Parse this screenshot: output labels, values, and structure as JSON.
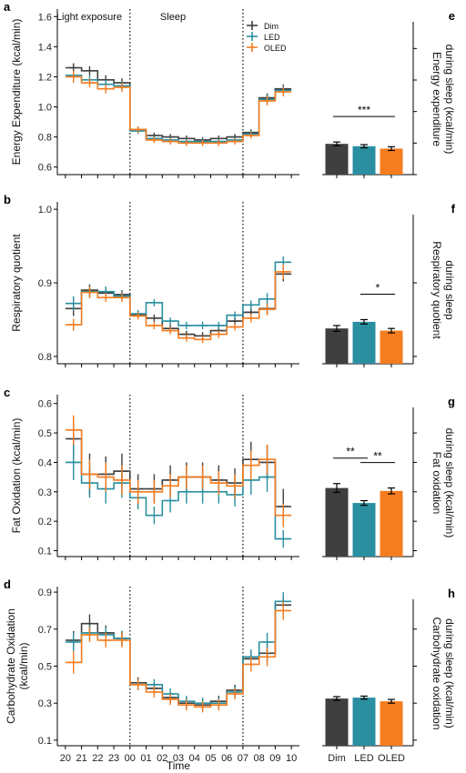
{
  "colors": {
    "Dim": "#3f3f3f",
    "LED": "#2a8fa0",
    "OLED": "#f57c1f"
  },
  "legend": {
    "placement": "top-right",
    "items": [
      "Dim",
      "LED",
      "OLED"
    ]
  },
  "time_axis": {
    "label": "Time",
    "ticks": [
      "20",
      "21",
      "22",
      "23",
      "00",
      "01",
      "02",
      "03",
      "04",
      "05",
      "06",
      "07",
      "08",
      "09",
      "10"
    ]
  },
  "phase_labels": [
    "Light exposure",
    "Sleep"
  ],
  "chart_data": [
    {
      "panel": "a",
      "type": "line",
      "ylabel": "Energy Expenditure (kcal/min)",
      "ylim": [
        0.55,
        1.65
      ],
      "yticks": [
        0.6,
        0.8,
        1.0,
        1.2,
        1.4,
        1.6
      ],
      "x": [
        20.5,
        21.5,
        22.5,
        23.5,
        24.5,
        25.5,
        26.5,
        27.5,
        28.5,
        29.5,
        30.5,
        31.5,
        32.5,
        33.5
      ],
      "series": [
        {
          "name": "Dim",
          "values": [
            1.26,
            1.24,
            1.18,
            1.16,
            0.85,
            0.81,
            0.8,
            0.79,
            0.78,
            0.79,
            0.8,
            0.83,
            1.06,
            1.12
          ],
          "err": [
            0.03,
            0.03,
            0.03,
            0.03,
            0.02,
            0.02,
            0.02,
            0.02,
            0.02,
            0.02,
            0.02,
            0.02,
            0.03,
            0.03
          ]
        },
        {
          "name": "LED",
          "values": [
            1.21,
            1.18,
            1.15,
            1.14,
            0.84,
            0.79,
            0.78,
            0.77,
            0.77,
            0.77,
            0.78,
            0.82,
            1.05,
            1.11
          ],
          "err": [
            0.03,
            0.03,
            0.03,
            0.03,
            0.02,
            0.02,
            0.02,
            0.02,
            0.02,
            0.02,
            0.02,
            0.02,
            0.03,
            0.03
          ]
        },
        {
          "name": "OLED",
          "values": [
            1.2,
            1.16,
            1.12,
            1.13,
            0.85,
            0.78,
            0.77,
            0.76,
            0.76,
            0.76,
            0.77,
            0.81,
            1.04,
            1.1
          ],
          "err": [
            0.04,
            0.03,
            0.03,
            0.03,
            0.02,
            0.02,
            0.02,
            0.02,
            0.02,
            0.02,
            0.02,
            0.02,
            0.03,
            0.03
          ]
        }
      ]
    },
    {
      "panel": "b",
      "type": "line",
      "ylabel": "Respiratory quotient",
      "ylim": [
        0.79,
        1.01
      ],
      "yticks": [
        0.8,
        0.9,
        1.0
      ],
      "x": [
        20.5,
        21.5,
        22.5,
        23.5,
        24.5,
        25.5,
        26.5,
        27.5,
        28.5,
        29.5,
        30.5,
        31.5,
        32.5,
        33.5
      ],
      "series": [
        {
          "name": "Dim",
          "values": [
            0.865,
            0.89,
            0.886,
            0.884,
            0.857,
            0.852,
            0.838,
            0.83,
            0.828,
            0.835,
            0.848,
            0.86,
            0.865,
            0.912
          ],
          "err": [
            0.01,
            0.008,
            0.007,
            0.006,
            0.005,
            0.005,
            0.005,
            0.005,
            0.005,
            0.005,
            0.005,
            0.006,
            0.008,
            0.01
          ]
        },
        {
          "name": "LED",
          "values": [
            0.872,
            0.888,
            0.888,
            0.882,
            0.858,
            0.873,
            0.848,
            0.842,
            0.842,
            0.842,
            0.856,
            0.87,
            0.878,
            0.928
          ],
          "err": [
            0.01,
            0.008,
            0.007,
            0.006,
            0.005,
            0.005,
            0.005,
            0.005,
            0.005,
            0.005,
            0.005,
            0.006,
            0.008,
            0.008
          ]
        },
        {
          "name": "OLED",
          "values": [
            0.843,
            0.887,
            0.88,
            0.88,
            0.855,
            0.842,
            0.835,
            0.825,
            0.823,
            0.83,
            0.84,
            0.852,
            0.864,
            0.915
          ],
          "err": [
            0.008,
            0.008,
            0.006,
            0.006,
            0.005,
            0.005,
            0.005,
            0.005,
            0.005,
            0.005,
            0.005,
            0.006,
            0.008,
            0.01
          ]
        }
      ]
    },
    {
      "panel": "c",
      "type": "line",
      "ylabel": "Fat Oxidation (kcal/min)",
      "ylim": [
        0.08,
        0.63
      ],
      "yticks": [
        0.1,
        0.2,
        0.3,
        0.4,
        0.5,
        0.6
      ],
      "x": [
        20.5,
        21.5,
        22.5,
        23.5,
        24.5,
        25.5,
        26.5,
        27.5,
        28.5,
        29.5,
        30.5,
        31.5,
        32.5,
        33.5
      ],
      "series": [
        {
          "name": "Dim",
          "values": [
            0.48,
            0.36,
            0.36,
            0.37,
            0.31,
            0.31,
            0.34,
            0.35,
            0.35,
            0.34,
            0.33,
            0.41,
            0.4,
            0.25
          ],
          "err": [
            0.07,
            0.07,
            0.06,
            0.06,
            0.05,
            0.05,
            0.05,
            0.05,
            0.05,
            0.05,
            0.05,
            0.06,
            0.06,
            0.06
          ]
        },
        {
          "name": "LED",
          "values": [
            0.4,
            0.33,
            0.31,
            0.33,
            0.28,
            0.22,
            0.27,
            0.3,
            0.3,
            0.3,
            0.29,
            0.34,
            0.35,
            0.14
          ],
          "err": [
            0.06,
            0.05,
            0.05,
            0.05,
            0.04,
            0.03,
            0.04,
            0.04,
            0.04,
            0.04,
            0.04,
            0.05,
            0.05,
            0.03
          ]
        },
        {
          "name": "OLED",
          "values": [
            0.51,
            0.36,
            0.35,
            0.34,
            0.3,
            0.3,
            0.32,
            0.35,
            0.35,
            0.33,
            0.32,
            0.39,
            0.41,
            0.22
          ],
          "err": [
            0.05,
            0.05,
            0.05,
            0.05,
            0.04,
            0.04,
            0.04,
            0.04,
            0.04,
            0.04,
            0.04,
            0.05,
            0.05,
            0.04
          ]
        }
      ]
    },
    {
      "panel": "d",
      "type": "line",
      "ylabel": "Carbohydrate Oxidation (kcal/min)",
      "ylim": [
        0.07,
        0.93
      ],
      "yticks": [
        0.1,
        0.3,
        0.5,
        0.7,
        0.9
      ],
      "x": [
        20.5,
        21.5,
        22.5,
        23.5,
        24.5,
        25.5,
        26.5,
        27.5,
        28.5,
        29.5,
        30.5,
        31.5,
        32.5,
        33.5
      ],
      "series": [
        {
          "name": "Dim",
          "values": [
            0.64,
            0.73,
            0.68,
            0.65,
            0.41,
            0.38,
            0.33,
            0.3,
            0.29,
            0.31,
            0.37,
            0.54,
            0.57,
            0.83
          ],
          "err": [
            0.05,
            0.05,
            0.04,
            0.04,
            0.03,
            0.03,
            0.03,
            0.03,
            0.03,
            0.03,
            0.03,
            0.04,
            0.05,
            0.05
          ]
        },
        {
          "name": "LED",
          "values": [
            0.63,
            0.68,
            0.67,
            0.65,
            0.4,
            0.4,
            0.35,
            0.31,
            0.3,
            0.3,
            0.36,
            0.55,
            0.63,
            0.85
          ],
          "err": [
            0.05,
            0.04,
            0.04,
            0.04,
            0.03,
            0.03,
            0.03,
            0.03,
            0.03,
            0.03,
            0.03,
            0.04,
            0.05,
            0.05
          ]
        },
        {
          "name": "OLED",
          "values": [
            0.52,
            0.67,
            0.64,
            0.64,
            0.4,
            0.36,
            0.32,
            0.29,
            0.28,
            0.29,
            0.35,
            0.51,
            0.55,
            0.8
          ],
          "err": [
            0.06,
            0.04,
            0.04,
            0.04,
            0.03,
            0.03,
            0.03,
            0.03,
            0.03,
            0.03,
            0.03,
            0.04,
            0.05,
            0.05
          ]
        }
      ]
    },
    {
      "panel": "e",
      "type": "bar",
      "ylabel": "Energy expenditure during sleep (kcal/min)",
      "categories": [
        "Dim",
        "LED",
        "OLED"
      ],
      "values": [
        0.795,
        0.78,
        0.765
      ],
      "err": [
        0.012,
        0.01,
        0.012
      ],
      "ylim": [
        0.6,
        1.65
      ],
      "significance": [
        {
          "from": 0,
          "to": 2,
          "label": "***"
        }
      ]
    },
    {
      "panel": "f",
      "type": "bar",
      "ylabel": "Respiratory quotient during sleep",
      "categories": [
        "Dim",
        "LED",
        "OLED"
      ],
      "values": [
        0.838,
        0.847,
        0.835
      ],
      "err": [
        0.004,
        0.003,
        0.003
      ],
      "ylim": [
        0.79,
        1.01
      ],
      "significance": [
        {
          "from": 1,
          "to": 2,
          "label": "*"
        }
      ]
    },
    {
      "panel": "g",
      "type": "bar",
      "ylabel": "Fat oxidation during sleep (kcal/min)",
      "categories": [
        "Dim",
        "LED",
        "OLED"
      ],
      "values": [
        0.313,
        0.262,
        0.303
      ],
      "err": [
        0.015,
        0.008,
        0.01
      ],
      "ylim": [
        0.08,
        0.63
      ],
      "significance": [
        {
          "from": 0,
          "to": 1,
          "label": "**"
        },
        {
          "from": 1,
          "to": 2,
          "label": "**"
        }
      ]
    },
    {
      "panel": "h",
      "type": "bar",
      "ylabel": "Carbohydrate oxidation during sleep (kcal/min)",
      "categories": [
        "Dim",
        "LED",
        "OLED"
      ],
      "values": [
        0.325,
        0.33,
        0.31
      ],
      "err": [
        0.01,
        0.008,
        0.01
      ],
      "ylim": [
        0.07,
        0.93
      ],
      "significance": []
    }
  ]
}
